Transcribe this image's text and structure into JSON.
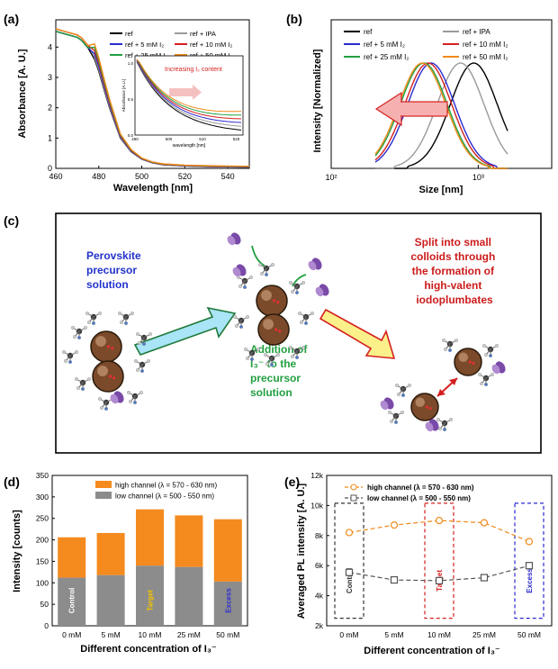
{
  "panels": {
    "a": {
      "label": "(a)",
      "chart_type": "line",
      "ylabel": "Absorbance [A. U.]",
      "xlabel": "Wavelength [nm]",
      "xlim": [
        460,
        550
      ],
      "ylim": [
        0,
        4.9
      ],
      "xticks": [
        "460",
        "480",
        "500",
        "520",
        "540"
      ],
      "yticks": [
        "0",
        "1",
        "2",
        "3",
        "4"
      ],
      "legend": [
        {
          "name": "ref",
          "color": "#000000"
        },
        {
          "name": "ref + IPA",
          "color": "#9a9a9a"
        },
        {
          "name": "ref + 5 mM I₂",
          "color": "#2a2ad0"
        },
        {
          "name": "ref + 10 mM I₂",
          "color": "#d42020"
        },
        {
          "name": "ref + 25 mM I₂",
          "color": "#22a040"
        },
        {
          "name": "ref + 50 mM I₂",
          "color": "#f08a1a"
        }
      ],
      "x": [
        460,
        465,
        470,
        472,
        475,
        478,
        480,
        482,
        485,
        488,
        490,
        495,
        500,
        505,
        510,
        520,
        530,
        540,
        550
      ],
      "series_base": [
        4.55,
        4.45,
        4.35,
        4.25,
        4.0,
        3.6,
        3.2,
        2.7,
        2.0,
        1.4,
        1.0,
        0.55,
        0.3,
        0.18,
        0.12,
        0.08,
        0.06,
        0.05,
        0.04
      ],
      "inset": {
        "title": "Increasing I₂ content",
        "ylabel": "Absorbance [A.U.]",
        "xlabel": "wavelength [nm]",
        "xticks": [
          "490",
          "500",
          "510",
          "520"
        ],
        "yticks": [
          "0.0",
          "0.5",
          "1.0"
        ]
      }
    },
    "b": {
      "label": "(b)",
      "chart_type": "line",
      "ylabel": "Intensity [Normalized]",
      "xlabel": "Size [nm]",
      "xticks": [
        "10²",
        "10³"
      ],
      "legend": [
        {
          "name": "ref",
          "color": "#000000"
        },
        {
          "name": "ref + IPA",
          "color": "#9a9a9a"
        },
        {
          "name": "ref + 5 mM I₂",
          "color": "#2a2ad0"
        },
        {
          "name": "ref + 10 mM I₂",
          "color": "#d42020"
        },
        {
          "name": "ref + 25 mM I₂",
          "color": "#22a040"
        },
        {
          "name": "ref + 50 mM I₂",
          "color": "#f08a1a"
        }
      ],
      "peaks_log": [
        2.97,
        2.88,
        2.68,
        2.66,
        2.63,
        2.62
      ],
      "width_log": 0.16
    },
    "c": {
      "label": "(c)",
      "text_precursor": [
        "Perovskite",
        "precursor",
        "solution"
      ],
      "text_addition": [
        "Addition of",
        "I₃⁻ to the",
        "precursor",
        "solution"
      ],
      "text_split": [
        "Split into small",
        "colloids through",
        "the formation of",
        "high-valent",
        "iodoplumbates"
      ]
    },
    "d": {
      "label": "(d)",
      "chart_type": "bar",
      "ylabel": "Intensity [counts]",
      "xlabel": "Different concentration of I₃⁻",
      "ylim": [
        0,
        350
      ],
      "yticks": [
        "0",
        "50",
        "100",
        "150",
        "200",
        "250",
        "300",
        "350"
      ],
      "categories": [
        "0 mM",
        "5 mM",
        "10 mM",
        "25 mM",
        "50 mM"
      ],
      "series": [
        {
          "name": "low channel (λ = 500 - 550 nm)",
          "color": "#8c8c8c",
          "values": [
            112,
            118,
            140,
            137,
            103
          ]
        },
        {
          "name": "high channel (λ = 570 - 630 nm)",
          "color": "#f58a1f",
          "values": [
            94,
            98,
            131,
            120,
            145
          ]
        }
      ],
      "bar_labels": [
        {
          "text": "Control",
          "color": "#ffffff"
        },
        {
          "text": "",
          "color": "#ffffff"
        },
        {
          "text": "Target",
          "color": "#f2c200"
        },
        {
          "text": "",
          "color": "#ffffff"
        },
        {
          "text": "Excess",
          "color": "#3030d0"
        }
      ]
    },
    "e": {
      "label": "(e)",
      "chart_type": "line",
      "ylabel": "Averaged PL intensity [A. U.]",
      "xlabel": "Different concentration of I₃⁻",
      "ylim": [
        2000,
        12000
      ],
      "yticks": [
        "2k",
        "4k",
        "6k",
        "8k",
        "10k",
        "12k"
      ],
      "categories": [
        "0 mM",
        "5 mM",
        "10 mM",
        "25 mM",
        "50 mM"
      ],
      "series": [
        {
          "name": "high channel (λ = 570 - 630 nm)",
          "color": "#f08a1a",
          "marker": "circle",
          "values": [
            8200,
            8700,
            9000,
            8850,
            7600
          ]
        },
        {
          "name": "low channel (λ = 500 - 550 nm)",
          "color": "#555555",
          "marker": "square",
          "values": [
            5550,
            5050,
            5000,
            5200,
            6000
          ]
        }
      ],
      "boxes": [
        {
          "text": "Control",
          "color": "#333333"
        },
        {
          "text": "Target",
          "color": "#d42020"
        },
        {
          "text": "Excess",
          "color": "#2a2ad0"
        }
      ]
    }
  }
}
